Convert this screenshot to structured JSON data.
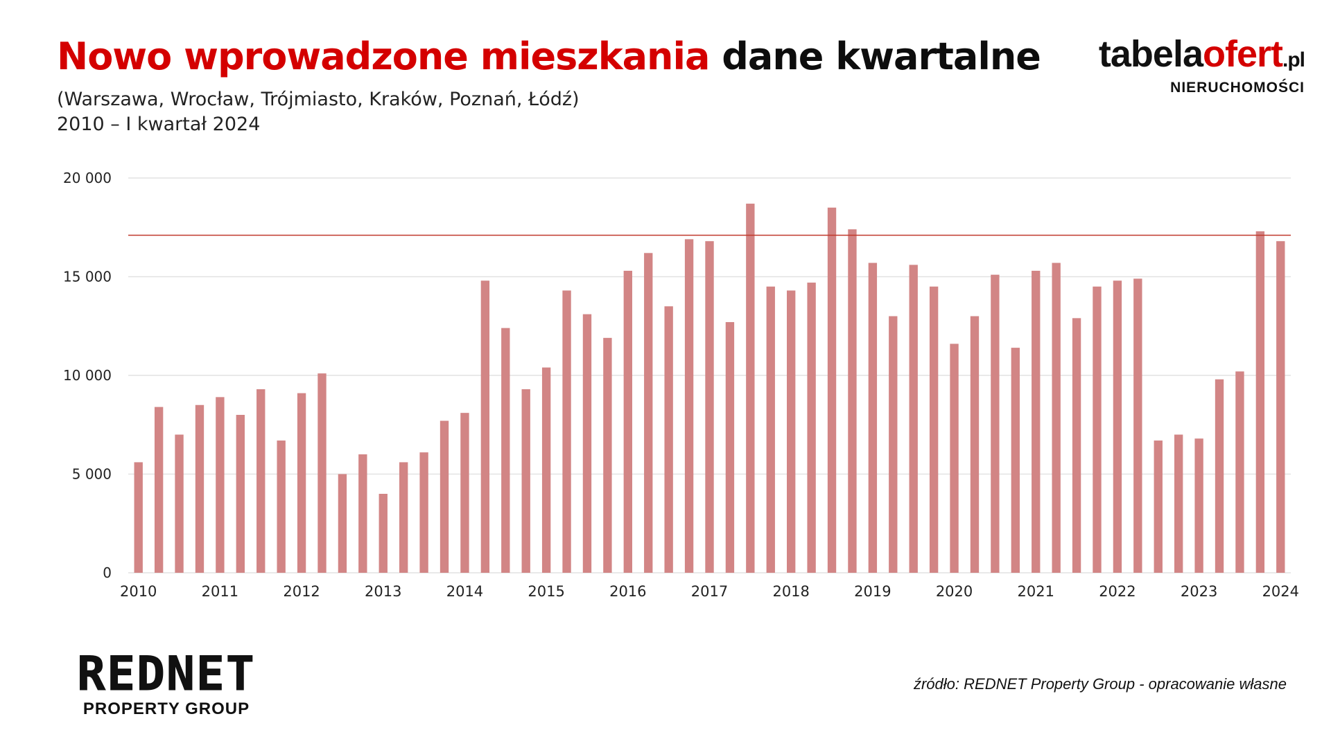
{
  "header": {
    "title_red": "Nowo wprowadzone mieszkania",
    "title_black": "dane kwartalne",
    "subtitle_line1": "(Warszawa, Wrocław, Trójmiasto, Kraków, Poznań, Łódź)",
    "subtitle_line2": "2010 – I kwartał 2024"
  },
  "brand_top": {
    "name_part1": "tabela",
    "name_part2": "ofert",
    "tld": ".pl",
    "tagline": "NIERUCHOMOŚCI"
  },
  "brand_bottom": {
    "name": "REDNET",
    "tagline": "PROPERTY GROUP"
  },
  "source": "źródło: REDNET Property Group - opracowanie własne",
  "colors": {
    "bar": "#d28585",
    "reference_line": "#c0392b",
    "grid": "#e2e2e2",
    "accent_red": "#d40000"
  },
  "chart_data": {
    "type": "bar",
    "title": "",
    "xlabel": "",
    "ylabel": "",
    "ylim": [
      0,
      20000
    ],
    "yticks": [
      0,
      5000,
      10000,
      15000,
      20000
    ],
    "ytick_labels": [
      "0",
      "5 000",
      "10 000",
      "15 000",
      "20 000"
    ],
    "xtick_labels": [
      "2010",
      "2011",
      "2012",
      "2013",
      "2014",
      "2015",
      "2016",
      "2017",
      "2018",
      "2019",
      "2020",
      "2021",
      "2022",
      "2023",
      "2024"
    ],
    "grid": true,
    "legend": "none",
    "reference_line": 17100,
    "categories": [
      "2010 Q1",
      "2010 Q2",
      "2010 Q3",
      "2010 Q4",
      "2011 Q1",
      "2011 Q2",
      "2011 Q3",
      "2011 Q4",
      "2012 Q1",
      "2012 Q2",
      "2012 Q3",
      "2012 Q4",
      "2013 Q1",
      "2013 Q2",
      "2013 Q3",
      "2013 Q4",
      "2014 Q1",
      "2014 Q2",
      "2014 Q3",
      "2014 Q4",
      "2015 Q1",
      "2015 Q2",
      "2015 Q3",
      "2015 Q4",
      "2016 Q1",
      "2016 Q2",
      "2016 Q3",
      "2016 Q4",
      "2017 Q1",
      "2017 Q2",
      "2017 Q3",
      "2017 Q4",
      "2018 Q1",
      "2018 Q2",
      "2018 Q3",
      "2018 Q4",
      "2019 Q1",
      "2019 Q2",
      "2019 Q3",
      "2019 Q4",
      "2020 Q1",
      "2020 Q2",
      "2020 Q3",
      "2020 Q4",
      "2021 Q1",
      "2021 Q2",
      "2021 Q3",
      "2021 Q4",
      "2022 Q1",
      "2022 Q2",
      "2022 Q3",
      "2022 Q4",
      "2023 Q1",
      "2023 Q2",
      "2023 Q3",
      "2023 Q4",
      "2024 Q1"
    ],
    "values": [
      5600,
      8400,
      7000,
      8500,
      8900,
      8000,
      9300,
      6700,
      9100,
      10100,
      5000,
      6000,
      4000,
      5600,
      6100,
      7700,
      8100,
      14800,
      12400,
      9300,
      10400,
      14300,
      13100,
      11900,
      15300,
      16200,
      13500,
      16900,
      16800,
      12700,
      18700,
      14500,
      14300,
      14700,
      18500,
      17400,
      15700,
      13000,
      15600,
      14500,
      11600,
      13000,
      15100,
      11400,
      15300,
      15700,
      12900,
      14500,
      14800,
      14900,
      6700,
      7000,
      6800,
      9800,
      10200,
      17300,
      16800
    ]
  }
}
